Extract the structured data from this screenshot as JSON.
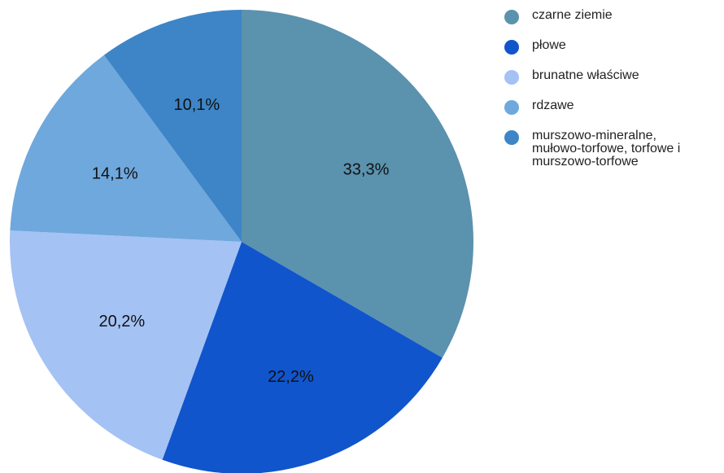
{
  "chart_data": {
    "type": "pie",
    "title": "",
    "start_angle_deg": 0,
    "direction": "clockwise",
    "legend_position": "right",
    "slices": [
      {
        "label": "czarne ziemie",
        "value": 33.3,
        "display": "33,3%",
        "color": "#5B92AE"
      },
      {
        "label": "płowe",
        "value": 22.2,
        "display": "22,2%",
        "color": "#1155CC"
      },
      {
        "label": "brunatne właściwe",
        "value": 20.2,
        "display": "20,2%",
        "color": "#A4C2F4"
      },
      {
        "label": "rdzawe",
        "value": 14.1,
        "display": "14,1%",
        "color": "#6FA8DC"
      },
      {
        "label": "murszowo-mineralne,\nmułowo-torfowe, torfowe i\nmurszowo-torfowe",
        "value": 10.1,
        "display": "10,1%",
        "color": "#3D85C6"
      }
    ]
  }
}
